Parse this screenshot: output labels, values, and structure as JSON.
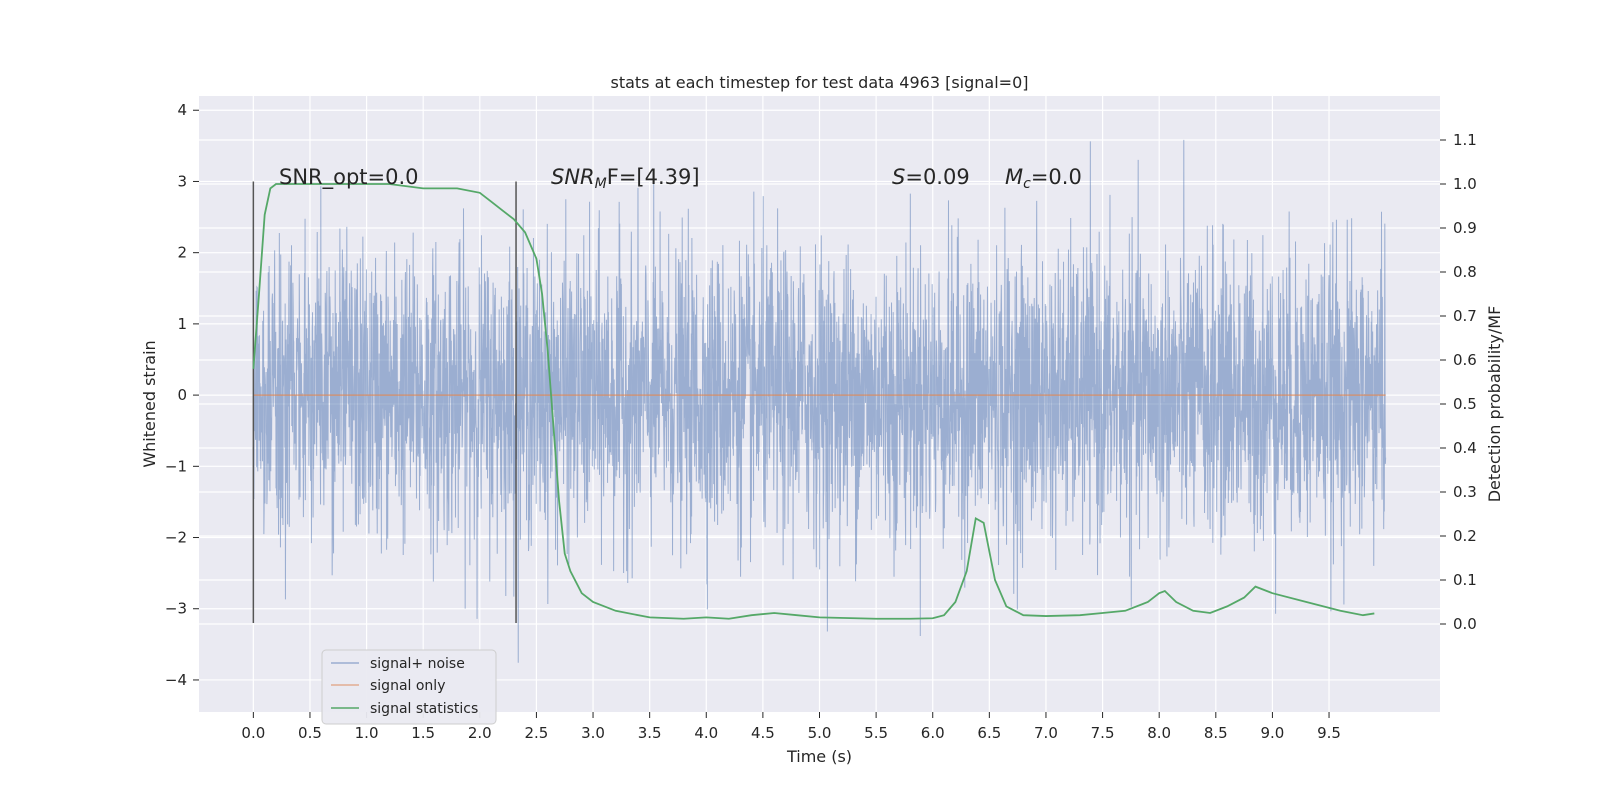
{
  "chart_data": {
    "type": "line",
    "title": "stats at each timestep for test data 4963 [signal=0]",
    "xlabel": "Time (s)",
    "ylabel_left": "Whitened strain",
    "ylabel_right": "Detection probability/MF",
    "xlim": [
      -0.48,
      10.48
    ],
    "ylim_left": [
      -4.45,
      4.2
    ],
    "ylim_right": [
      -0.2,
      1.2
    ],
    "x_ticks": [
      "0.0",
      "0.5",
      "1.0",
      "1.5",
      "2.0",
      "2.5",
      "3.0",
      "3.5",
      "4.0",
      "4.5",
      "5.0",
      "5.5",
      "6.0",
      "6.5",
      "7.0",
      "7.5",
      "8.0",
      "8.5",
      "9.0",
      "9.5"
    ],
    "y_ticks_left": [
      "−4",
      "−3",
      "−2",
      "−1",
      "0",
      "1",
      "2",
      "3",
      "4"
    ],
    "y_ticks_right": [
      "0.0",
      "0.1",
      "0.2",
      "0.3",
      "0.4",
      "0.5",
      "0.6",
      "0.7",
      "0.8",
      "0.9",
      "1.0",
      "1.1"
    ],
    "grid": true,
    "legend_position": "lower-left",
    "series": [
      {
        "name": "signal+ noise",
        "axis": "left",
        "color": "#4c72b0",
        "x_range": [
          0.0,
          10.0
        ],
        "amplitude_std": 1.0,
        "peak_range": [
          -4.05,
          3.82
        ]
      },
      {
        "name": "signal only",
        "axis": "left",
        "color": "#dd8452",
        "x": [
          0.0,
          10.0
        ],
        "y": [
          0.0,
          0.0
        ]
      },
      {
        "name": "signal statistics",
        "axis": "right",
        "color": "#55a868",
        "x": [
          0.0,
          0.05,
          0.1,
          0.15,
          0.2,
          0.3,
          0.5,
          0.8,
          1.0,
          1.2,
          1.5,
          1.8,
          2.0,
          2.1,
          2.2,
          2.3,
          2.4,
          2.5,
          2.55,
          2.6,
          2.65,
          2.7,
          2.75,
          2.8,
          2.9,
          3.0,
          3.2,
          3.5,
          3.8,
          4.0,
          4.2,
          4.4,
          4.6,
          4.8,
          5.0,
          5.5,
          5.8,
          6.0,
          6.1,
          6.2,
          6.3,
          6.38,
          6.45,
          6.55,
          6.65,
          6.8,
          7.0,
          7.3,
          7.5,
          7.7,
          7.9,
          8.0,
          8.05,
          8.15,
          8.3,
          8.45,
          8.6,
          8.75,
          8.85,
          9.0,
          9.3,
          9.6,
          9.8,
          9.9
        ],
        "y": [
          0.58,
          0.75,
          0.93,
          0.99,
          1.0,
          1.0,
          1.0,
          1.0,
          1.0,
          1.0,
          0.99,
          0.99,
          0.98,
          0.96,
          0.94,
          0.92,
          0.89,
          0.83,
          0.75,
          0.62,
          0.45,
          0.28,
          0.16,
          0.12,
          0.07,
          0.05,
          0.03,
          0.015,
          0.012,
          0.015,
          0.012,
          0.02,
          0.025,
          0.02,
          0.015,
          0.012,
          0.012,
          0.013,
          0.02,
          0.05,
          0.12,
          0.24,
          0.23,
          0.1,
          0.04,
          0.02,
          0.018,
          0.02,
          0.025,
          0.03,
          0.05,
          0.07,
          0.075,
          0.05,
          0.03,
          0.025,
          0.04,
          0.06,
          0.085,
          0.07,
          0.05,
          0.03,
          0.02,
          0.024
        ]
      }
    ],
    "vertical_lines_x": [
      0.0,
      2.32
    ],
    "annotations": [
      {
        "text": "SNR_opt=0.0",
        "x": 0.2
      },
      {
        "text": "SNR",
        "sub": "M",
        "rest": "F=[4.39]",
        "x": 2.6
      },
      {
        "text": "S",
        "rest": "=0.09",
        "x": 5.6
      },
      {
        "text": "M",
        "sub": "c",
        "rest": "=0.0",
        "x": 6.6
      }
    ]
  }
}
